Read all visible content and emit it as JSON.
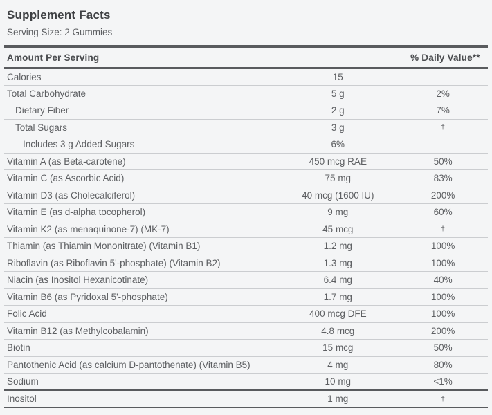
{
  "header": {
    "title": "Supplement Facts",
    "serving_size": "Serving Size: 2 Gummies"
  },
  "table": {
    "col_amount": "Amount Per Serving",
    "col_dv": "% Daily Value**",
    "rows": [
      {
        "name": "Calories",
        "amount": "15",
        "dv": "",
        "indent": 0
      },
      {
        "name": "Total Carbohydrate",
        "amount": "5 g",
        "dv": "2%",
        "indent": 0
      },
      {
        "name": "Dietary Fiber",
        "amount": "2 g",
        "dv": "7%",
        "indent": 1
      },
      {
        "name": "Total Sugars",
        "amount": "3 g",
        "dv": "†",
        "indent": 1
      },
      {
        "name": "Includes 3 g Added Sugars",
        "amount": "6%",
        "dv": "",
        "indent": 2
      },
      {
        "name": "Vitamin A (as Beta-carotene)",
        "amount": "450 mcg RAE",
        "dv": "50%",
        "indent": 0
      },
      {
        "name": "Vitamin C (as Ascorbic Acid)",
        "amount": "75 mg",
        "dv": "83%",
        "indent": 0
      },
      {
        "name": "Vitamin D3 (as Cholecalciferol)",
        "amount": "40 mcg (1600 IU)",
        "dv": "200%",
        "indent": 0
      },
      {
        "name": "Vitamin E (as d-alpha tocopherol)",
        "amount": "9 mg",
        "dv": "60%",
        "indent": 0
      },
      {
        "name": "Vitamin K2 (as menaquinone-7) (MK-7)",
        "amount": "45 mcg",
        "dv": "†",
        "indent": 0
      },
      {
        "name": "Thiamin (as Thiamin Mononitrate) (Vitamin B1)",
        "amount": "1.2 mg",
        "dv": "100%",
        "indent": 0
      },
      {
        "name": "Riboflavin (as Riboflavin 5'-phosphate) (Vitamin B2)",
        "amount": "1.3 mg",
        "dv": "100%",
        "indent": 0
      },
      {
        "name": "Niacin (as Inositol Hexanicotinate)",
        "amount": "6.4 mg",
        "dv": "40%",
        "indent": 0
      },
      {
        "name": "Vitamin B6 (as Pyridoxal 5'-phosphate)",
        "amount": "1.7 mg",
        "dv": "100%",
        "indent": 0
      },
      {
        "name": "Folic Acid",
        "amount": "400 mcg DFE",
        "dv": "100%",
        "indent": 0
      },
      {
        "name": "Vitamin B12 (as Methylcobalamin)",
        "amount": "4.8 mcg",
        "dv": "200%",
        "indent": 0
      },
      {
        "name": "Biotin",
        "amount": "15 mcg",
        "dv": "50%",
        "indent": 0
      },
      {
        "name": "Pantothenic Acid (as calcium D-pantothenate) (Vitamin B5)",
        "amount": "4 mg",
        "dv": "80%",
        "indent": 0
      },
      {
        "name": "Sodium",
        "amount": "10 mg",
        "dv": "<1%",
        "indent": 0,
        "section_end": true
      },
      {
        "name": "Inositol",
        "amount": "1 mg",
        "dv": "†",
        "indent": 0
      }
    ]
  },
  "colors": {
    "background": "#f4f5f6",
    "divider_bar": "#595b5e",
    "row_separator": "#cbcdd0",
    "title_text": "#3e4043",
    "body_text": "#5d5f62"
  }
}
